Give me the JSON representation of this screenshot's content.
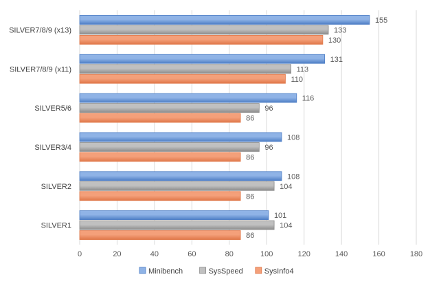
{
  "chart_data": {
    "type": "bar",
    "orientation": "horizontal",
    "categories": [
      "SILVER7/8/9 (x13)",
      "SILVER7/8/9 (x11)",
      "SILVER5/6",
      "SILVER3/4",
      "SILVER2",
      "SILVER1"
    ],
    "series": [
      {
        "name": "Minibench",
        "values": [
          155,
          131,
          116,
          108,
          108,
          101
        ],
        "color": "#8fb3e6"
      },
      {
        "name": "SysSpeed",
        "values": [
          133,
          113,
          96,
          96,
          104,
          104
        ],
        "color": "#c0c0c0"
      },
      {
        "name": "SysInfo4",
        "values": [
          130,
          110,
          86,
          86,
          86,
          86
        ],
        "color": "#f4a07a"
      }
    ],
    "xlim": [
      0,
      180
    ],
    "xticks": [
      0,
      20,
      40,
      60,
      80,
      100,
      120,
      140,
      160,
      180
    ],
    "grid": true,
    "legend_position": "bottom"
  }
}
